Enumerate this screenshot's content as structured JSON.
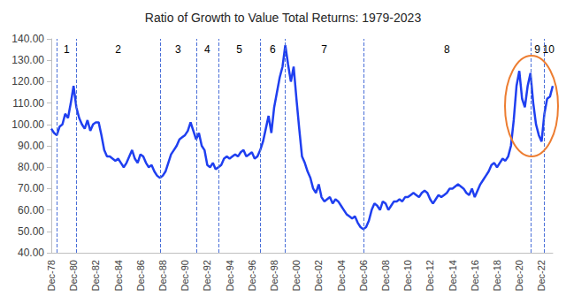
{
  "chart_data": {
    "type": "line",
    "title": "Ratio of Growth to Value Total Returns: 1979-2023",
    "categories": [
      "Dec-78",
      null,
      null,
      null,
      null,
      null,
      null,
      null,
      "Dec-80",
      null,
      null,
      null,
      null,
      null,
      null,
      null,
      "Dec-82",
      null,
      null,
      null,
      null,
      null,
      null,
      null,
      "Dec-84",
      null,
      null,
      null,
      null,
      null,
      null,
      null,
      "Dec-86",
      null,
      null,
      null,
      null,
      null,
      null,
      null,
      "Dec-88",
      null,
      null,
      null,
      null,
      null,
      null,
      null,
      "Dec-90",
      null,
      null,
      null,
      null,
      null,
      null,
      null,
      "Dec-92",
      null,
      null,
      null,
      null,
      null,
      null,
      null,
      "Dec-94",
      null,
      null,
      null,
      null,
      null,
      null,
      null,
      "Dec-96",
      null,
      null,
      null,
      null,
      null,
      null,
      null,
      "Dec-98",
      null,
      null,
      null,
      null,
      null,
      null,
      null,
      "Dec-00",
      null,
      null,
      null,
      null,
      null,
      null,
      null,
      "Dec-02",
      null,
      null,
      null,
      null,
      null,
      null,
      null,
      "Dec-04",
      null,
      null,
      null,
      null,
      null,
      null,
      null,
      "Dec-06",
      null,
      null,
      null,
      null,
      null,
      null,
      null,
      "Dec-08",
      null,
      null,
      null,
      null,
      null,
      null,
      null,
      "Dec-10",
      null,
      null,
      null,
      null,
      null,
      null,
      null,
      "Dec-12",
      null,
      null,
      null,
      null,
      null,
      null,
      null,
      "Dec-14",
      null,
      null,
      null,
      null,
      null,
      null,
      null,
      "Dec-16",
      null,
      null,
      null,
      null,
      null,
      null,
      null,
      "Dec-18",
      null,
      null,
      null,
      null,
      null,
      null,
      null,
      "Dec-20",
      null,
      null,
      null,
      null,
      null,
      null,
      null,
      "Dec-22",
      null,
      null,
      null,
      null
    ],
    "values": [
      98,
      96,
      95,
      99,
      100,
      105,
      103,
      110,
      118,
      108,
      103,
      100,
      98,
      102,
      97,
      100,
      101,
      101,
      95,
      88,
      85,
      85,
      84,
      83,
      84,
      82,
      80,
      82,
      85,
      88,
      84,
      82,
      86,
      85,
      82,
      80,
      81,
      78,
      76,
      75,
      76,
      78,
      82,
      86,
      88,
      90,
      93,
      94,
      95,
      97,
      101,
      97,
      93,
      96,
      90,
      88,
      81,
      80,
      82,
      79,
      80,
      81,
      84,
      85,
      84,
      85,
      86,
      85,
      87,
      88,
      85,
      86,
      87,
      84,
      85,
      88,
      92,
      98,
      104,
      96,
      108,
      115,
      122,
      127,
      137,
      128,
      120,
      127,
      112,
      98,
      85,
      82,
      78,
      75,
      70,
      68,
      72,
      66,
      64,
      65,
      66,
      63,
      65,
      64,
      62,
      60,
      58,
      57,
      56,
      57,
      54,
      52,
      51,
      52,
      55,
      60,
      63,
      62,
      60,
      64,
      63,
      60,
      62,
      64,
      64,
      65,
      64,
      66,
      66,
      67,
      68,
      67,
      66,
      68,
      69,
      68,
      65,
      63,
      65,
      67,
      66,
      67,
      68,
      70,
      70,
      71,
      72,
      71,
      70,
      68,
      67,
      70,
      66,
      69,
      72,
      74,
      76,
      78,
      81,
      82,
      80,
      82,
      84,
      83,
      85,
      90,
      102,
      118,
      125,
      112,
      108,
      118,
      124,
      110,
      100,
      95,
      92,
      105,
      112,
      113,
      118
    ],
    "color": "#1f3ff0",
    "periods": [
      {
        "label": "1",
        "start": 2,
        "end": 9
      },
      {
        "label": "2",
        "start": 9,
        "end": 39
      },
      {
        "label": "3",
        "start": 39,
        "end": 52
      },
      {
        "label": "4",
        "start": 52,
        "end": 60
      },
      {
        "label": "5",
        "start": 60,
        "end": 75
      },
      {
        "label": "6",
        "start": 75,
        "end": 84
      },
      {
        "label": "7",
        "start": 84,
        "end": 112
      },
      {
        "label": "8",
        "start": 112,
        "end": 172
      },
      {
        "label": "9",
        "start": 172,
        "end": 177
      },
      {
        "label": "10",
        "start": 177,
        "end": 180
      }
    ],
    "ylim": [
      40,
      140
    ],
    "yticks": [
      {
        "value": 40,
        "label": "40.00"
      },
      {
        "value": 50,
        "label": "50.00"
      },
      {
        "value": 60,
        "label": "60.00"
      },
      {
        "value": 70,
        "label": "70.00"
      },
      {
        "value": 80,
        "label": "80.00"
      },
      {
        "value": 90,
        "label": "90.00"
      },
      {
        "value": 100,
        "label": "100.00"
      },
      {
        "value": 110,
        "label": "110.00"
      },
      {
        "value": 120,
        "label": "120.00"
      },
      {
        "value": 130,
        "label": "130.00"
      },
      {
        "value": 140,
        "label": "140.00"
      }
    ],
    "grid": false
  }
}
